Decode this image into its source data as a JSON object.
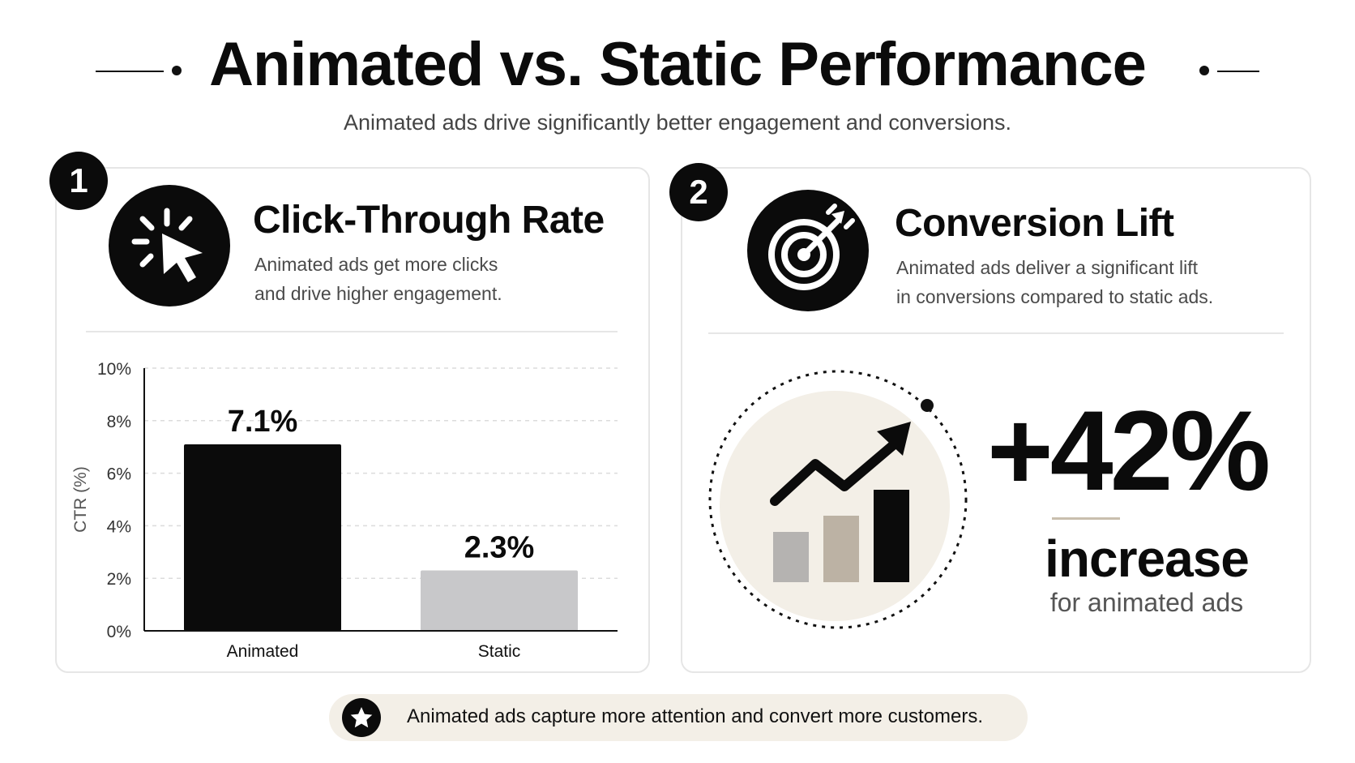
{
  "header": {
    "title": "Animated vs. Static Performance",
    "subtitle": "Animated ads drive significantly better engagement and conversions."
  },
  "ctr_card": {
    "number": "1",
    "icon": "cursor-click-icon",
    "title": "Click-Through Rate",
    "description_line1": "Animated ads get more clicks",
    "description_line2": "and drive higher engagement."
  },
  "lift_card": {
    "number": "2",
    "icon": "target-arrow-icon",
    "title": "Conversion Lift",
    "description_line1": "Animated ads deliver a significant lift",
    "description_line2": "in conversions compared to static ads.",
    "illustration_icon": "growth-chart-icon",
    "value": "+42%",
    "label": "increase",
    "sublabel": "for animated ads"
  },
  "footer": {
    "icon": "star-icon",
    "text": "Animated ads capture more attention and convert more customers."
  },
  "colors": {
    "primary": "#0b0b0b",
    "static_bar": "#c8c8ca",
    "accent_beige": "#f3efe7",
    "card_border": "#e6e6e6"
  },
  "chart_data": {
    "type": "bar",
    "categories": [
      "Animated",
      "Static"
    ],
    "values": [
      7.1,
      2.3
    ],
    "data_labels": [
      "7.1%",
      "2.3%"
    ],
    "bar_colors": [
      "#0b0b0b",
      "#c8c8ca"
    ],
    "ylabel": "CTR (%)",
    "ylim": [
      0,
      10
    ],
    "yticks": [
      0,
      2,
      4,
      6,
      8,
      10
    ],
    "ytick_labels": [
      "0%",
      "2%",
      "4%",
      "6%",
      "8%",
      "10%"
    ],
    "grid": true
  }
}
